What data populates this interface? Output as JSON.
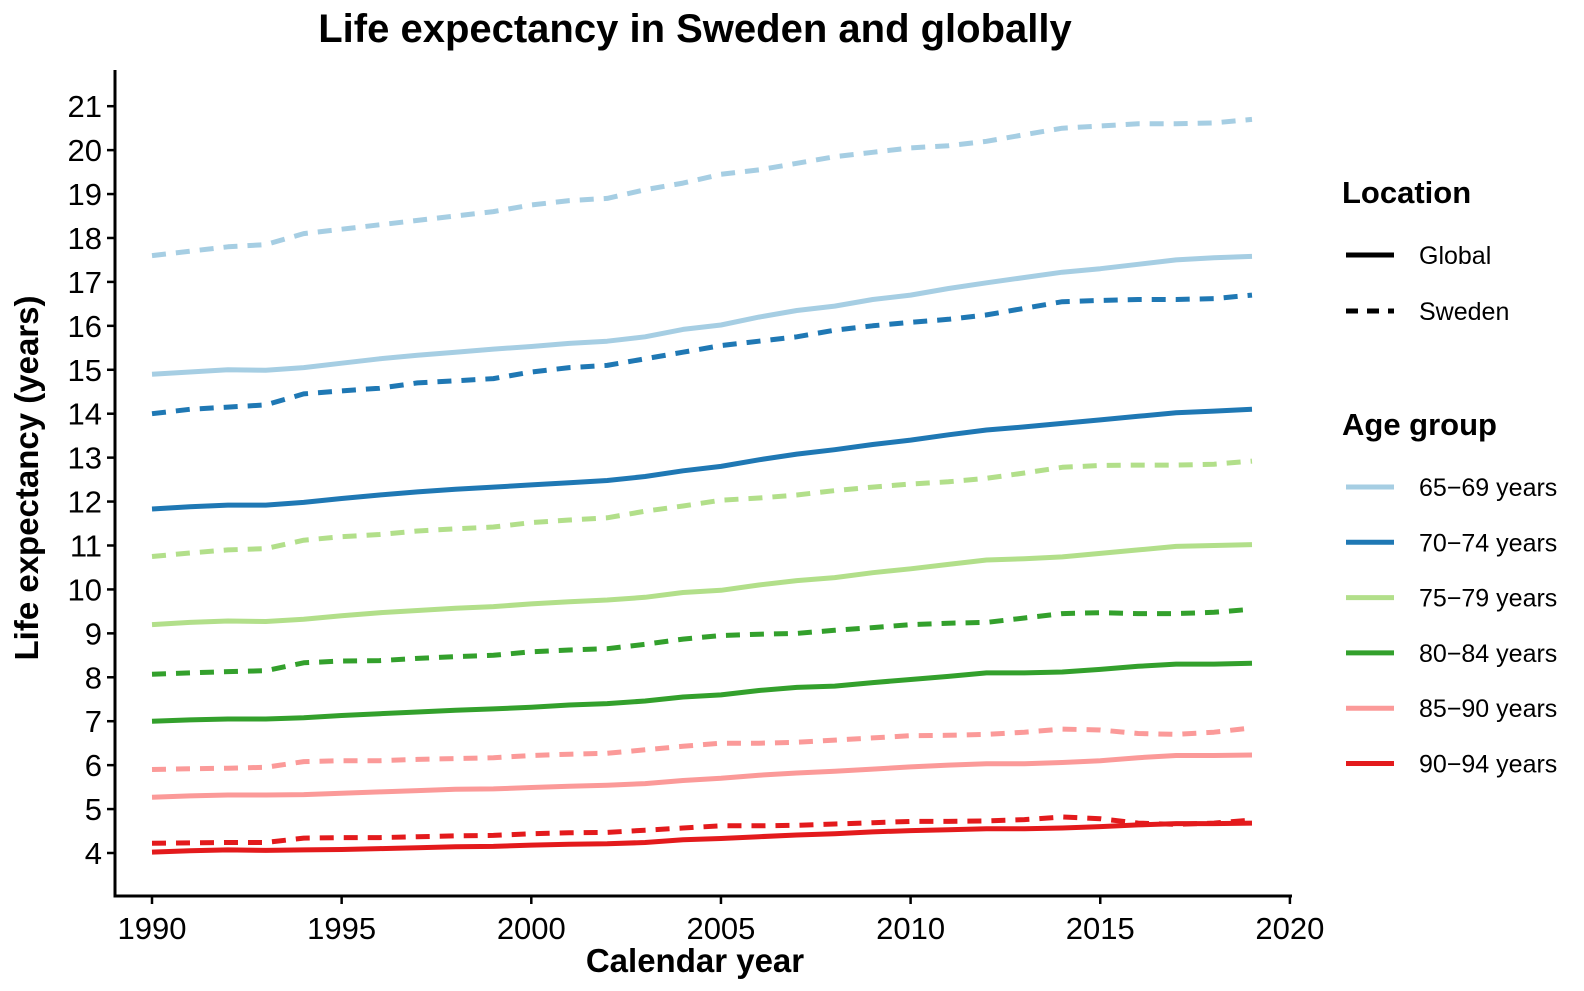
{
  "chart_data": {
    "type": "line",
    "title": "Life expectancy in Sweden and globally",
    "xlabel": "Calendar year",
    "ylabel": "Life expectancy (years)",
    "xlim": [
      1990,
      2020
    ],
    "ylim": [
      3,
      22
    ],
    "x_ticks": [
      1990,
      1995,
      2000,
      2005,
      2010,
      2015,
      2020
    ],
    "y_ticks": [
      4,
      5,
      6,
      7,
      8,
      9,
      10,
      11,
      12,
      13,
      14,
      15,
      16,
      17,
      18,
      19,
      20,
      21
    ],
    "grid": false,
    "legend_placement": "right",
    "x": [
      1990,
      1991,
      1992,
      1993,
      1994,
      1995,
      1996,
      1997,
      1998,
      1999,
      2000,
      2001,
      2002,
      2003,
      2004,
      2005,
      2006,
      2007,
      2008,
      2009,
      2010,
      2011,
      2012,
      2013,
      2014,
      2015,
      2016,
      2017,
      2018,
      2019
    ],
    "linestyle_legend": {
      "title": "Location",
      "entries": [
        {
          "label": "Global",
          "dash": "solid"
        },
        {
          "label": "Sweden",
          "dash": "dashed"
        }
      ]
    },
    "color_legend": {
      "title": "Age group",
      "entries": [
        {
          "label": "65−69 years",
          "color": "#a6cee3"
        },
        {
          "label": "70−74 years",
          "color": "#1f78b4"
        },
        {
          "label": "75−79 years",
          "color": "#b2df8a"
        },
        {
          "label": "80−84 years",
          "color": "#33a02c"
        },
        {
          "label": "85−90 years",
          "color": "#fb9a99"
        },
        {
          "label": "90−94 years",
          "color": "#e31a1c"
        }
      ]
    },
    "series": [
      {
        "age_group": "65−69 years",
        "location": "Sweden",
        "color": "#a6cee3",
        "dash": "dashed",
        "values": [
          17.6,
          17.7,
          17.8,
          17.85,
          18.1,
          18.2,
          18.3,
          18.4,
          18.5,
          18.6,
          18.75,
          18.85,
          18.9,
          19.1,
          19.25,
          19.45,
          19.55,
          19.7,
          19.85,
          19.95,
          20.05,
          20.1,
          20.2,
          20.35,
          20.5,
          20.55,
          20.6,
          20.6,
          20.62,
          20.7
        ]
      },
      {
        "age_group": "65−69 years",
        "location": "Global",
        "color": "#a6cee3",
        "dash": "solid",
        "values": [
          14.9,
          14.95,
          15.0,
          14.99,
          15.05,
          15.15,
          15.25,
          15.33,
          15.4,
          15.47,
          15.53,
          15.6,
          15.65,
          15.75,
          15.92,
          16.02,
          16.2,
          16.35,
          16.45,
          16.6,
          16.7,
          16.85,
          16.98,
          17.1,
          17.22,
          17.3,
          17.4,
          17.5,
          17.55,
          17.58
        ]
      },
      {
        "age_group": "70−74 years",
        "location": "Sweden",
        "color": "#1f78b4",
        "dash": "dashed",
        "values": [
          14.0,
          14.1,
          14.15,
          14.2,
          14.45,
          14.52,
          14.58,
          14.7,
          14.75,
          14.8,
          14.95,
          15.05,
          15.1,
          15.25,
          15.4,
          15.55,
          15.65,
          15.75,
          15.9,
          16.0,
          16.08,
          16.15,
          16.25,
          16.4,
          16.55,
          16.58,
          16.6,
          16.6,
          16.62,
          16.7
        ]
      },
      {
        "age_group": "70−74 years",
        "location": "Global",
        "color": "#1f78b4",
        "dash": "solid",
        "values": [
          11.83,
          11.88,
          11.92,
          11.92,
          11.98,
          12.07,
          12.15,
          12.22,
          12.28,
          12.33,
          12.38,
          12.43,
          12.48,
          12.57,
          12.7,
          12.8,
          12.95,
          13.08,
          13.18,
          13.3,
          13.4,
          13.52,
          13.63,
          13.7,
          13.78,
          13.86,
          13.94,
          14.02,
          14.06,
          14.1
        ]
      },
      {
        "age_group": "75−79 years",
        "location": "Sweden",
        "color": "#b2df8a",
        "dash": "dashed",
        "values": [
          10.75,
          10.83,
          10.9,
          10.93,
          11.12,
          11.2,
          11.25,
          11.33,
          11.38,
          11.42,
          11.52,
          11.58,
          11.63,
          11.78,
          11.9,
          12.03,
          12.08,
          12.15,
          12.25,
          12.33,
          12.4,
          12.45,
          12.53,
          12.65,
          12.78,
          12.82,
          12.83,
          12.83,
          12.85,
          12.92
        ]
      },
      {
        "age_group": "75−79 years",
        "location": "Global",
        "color": "#b2df8a",
        "dash": "solid",
        "values": [
          9.2,
          9.25,
          9.28,
          9.27,
          9.32,
          9.4,
          9.47,
          9.52,
          9.57,
          9.61,
          9.67,
          9.72,
          9.76,
          9.82,
          9.93,
          9.98,
          10.1,
          10.2,
          10.27,
          10.38,
          10.47,
          10.57,
          10.67,
          10.7,
          10.74,
          10.82,
          10.9,
          10.98,
          11.0,
          11.02
        ]
      },
      {
        "age_group": "80−84 years",
        "location": "Sweden",
        "color": "#33a02c",
        "dash": "dashed",
        "values": [
          8.07,
          8.1,
          8.13,
          8.15,
          8.33,
          8.37,
          8.38,
          8.43,
          8.47,
          8.5,
          8.58,
          8.62,
          8.65,
          8.75,
          8.87,
          8.95,
          8.98,
          9.0,
          9.07,
          9.13,
          9.2,
          9.23,
          9.25,
          9.35,
          9.45,
          9.47,
          9.45,
          9.45,
          9.48,
          9.55
        ]
      },
      {
        "age_group": "80−84 years",
        "location": "Global",
        "color": "#33a02c",
        "dash": "solid",
        "values": [
          7.0,
          7.03,
          7.05,
          7.05,
          7.08,
          7.13,
          7.17,
          7.21,
          7.25,
          7.28,
          7.32,
          7.37,
          7.4,
          7.46,
          7.55,
          7.6,
          7.7,
          7.77,
          7.8,
          7.88,
          7.95,
          8.02,
          8.1,
          8.1,
          8.12,
          8.18,
          8.25,
          8.3,
          8.3,
          8.32
        ]
      },
      {
        "age_group": "85−90 years",
        "location": "Sweden",
        "color": "#fb9a99",
        "dash": "dashed",
        "values": [
          5.9,
          5.92,
          5.93,
          5.95,
          6.08,
          6.1,
          6.1,
          6.13,
          6.15,
          6.17,
          6.22,
          6.25,
          6.27,
          6.35,
          6.43,
          6.5,
          6.5,
          6.52,
          6.57,
          6.62,
          6.67,
          6.68,
          6.7,
          6.75,
          6.82,
          6.8,
          6.72,
          6.7,
          6.75,
          6.85
        ]
      },
      {
        "age_group": "85−90 years",
        "location": "Global",
        "color": "#fb9a99",
        "dash": "solid",
        "values": [
          5.27,
          5.3,
          5.32,
          5.32,
          5.33,
          5.36,
          5.39,
          5.42,
          5.45,
          5.46,
          5.49,
          5.52,
          5.54,
          5.58,
          5.65,
          5.7,
          5.77,
          5.82,
          5.86,
          5.91,
          5.96,
          6.0,
          6.03,
          6.03,
          6.06,
          6.1,
          6.17,
          6.22,
          6.22,
          6.23
        ]
      },
      {
        "age_group": "90−94 years",
        "location": "Sweden",
        "color": "#e31a1c",
        "dash": "dashed",
        "values": [
          4.22,
          4.23,
          4.24,
          4.24,
          4.34,
          4.35,
          4.35,
          4.37,
          4.39,
          4.4,
          4.44,
          4.46,
          4.47,
          4.52,
          4.57,
          4.62,
          4.62,
          4.63,
          4.66,
          4.69,
          4.72,
          4.72,
          4.73,
          4.76,
          4.82,
          4.78,
          4.68,
          4.65,
          4.68,
          4.75
        ]
      },
      {
        "age_group": "90−94 years",
        "location": "Global",
        "color": "#e31a1c",
        "dash": "solid",
        "values": [
          4.02,
          4.05,
          4.07,
          4.06,
          4.07,
          4.08,
          4.1,
          4.12,
          4.14,
          4.15,
          4.18,
          4.2,
          4.21,
          4.24,
          4.3,
          4.33,
          4.37,
          4.41,
          4.44,
          4.48,
          4.51,
          4.53,
          4.55,
          4.55,
          4.57,
          4.6,
          4.64,
          4.67,
          4.67,
          4.68
        ]
      }
    ]
  }
}
